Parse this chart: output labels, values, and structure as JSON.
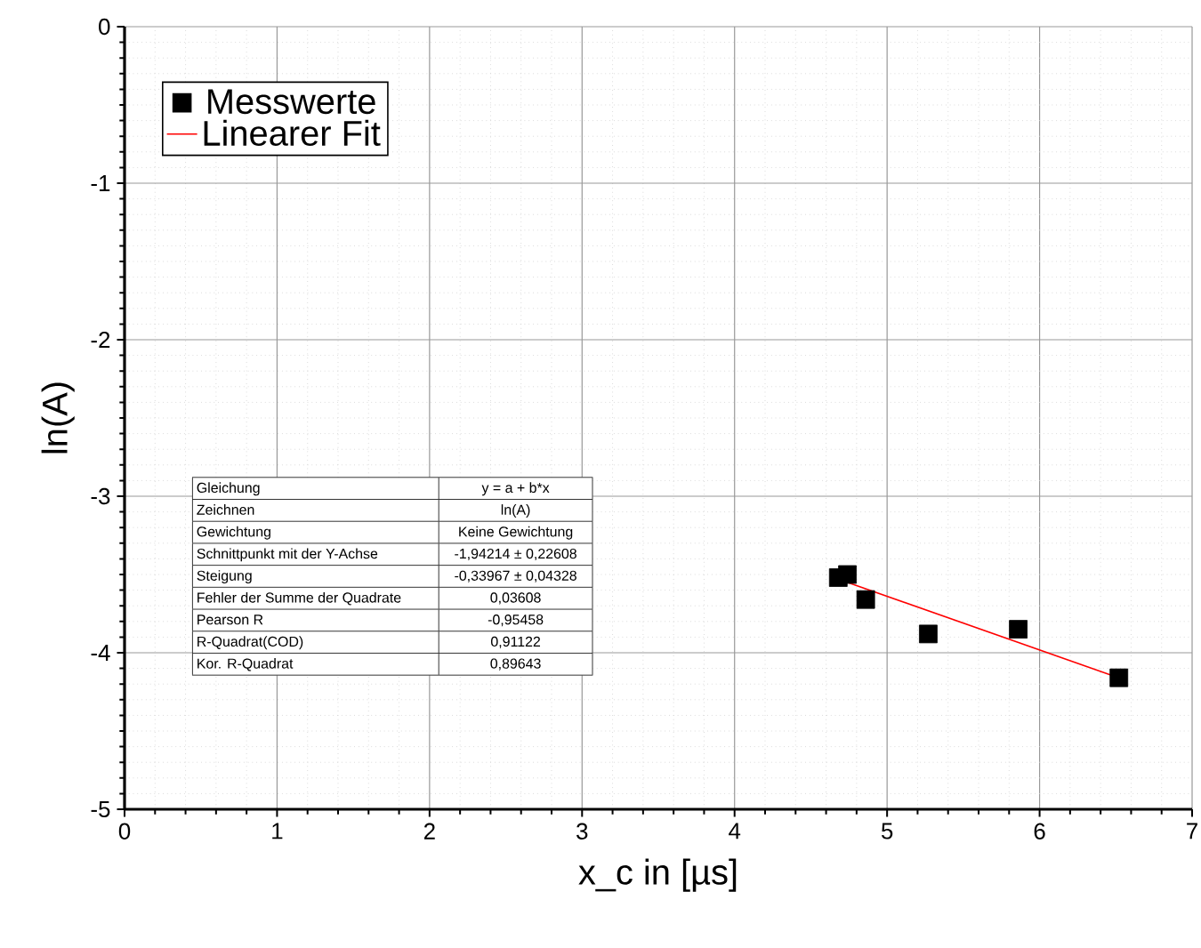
{
  "chart_data": {
    "type": "scatter",
    "xlabel": "x_c in [µs]",
    "ylabel": "ln(A)",
    "xlim": [
      0,
      7
    ],
    "ylim": [
      -5,
      0
    ],
    "xticks": [
      0,
      1,
      2,
      3,
      4,
      5,
      6,
      7
    ],
    "yticks": [
      -5,
      -4,
      -3,
      -2,
      -1,
      0
    ],
    "grid": true,
    "legend": "top left",
    "series": [
      {
        "name": "Messwerte",
        "marker": "square",
        "color": "#000000",
        "x": [
          4.68,
          4.74,
          4.86,
          5.27,
          5.86,
          6.52
        ],
        "values": [
          -3.52,
          -3.5,
          -3.66,
          -3.88,
          -3.85,
          -4.16
        ]
      },
      {
        "name": "Linearer Fit",
        "type": "line",
        "color": "#ff0000",
        "x": [
          4.68,
          6.52
        ],
        "values": [
          -3.53,
          -4.16
        ]
      }
    ],
    "annotations": [
      "Gleichung",
      "y = a + b*x",
      "Zeichnen",
      "ln(A)",
      "Gewichtung",
      "Keine Gewichtung",
      "Schnittpunkt mit der Y-Achse",
      "-1,94214 ± 0,22608",
      "Steigung",
      "-0,33967 ± 0,04328",
      "Fehler der Summe der Quadrate",
      "0,03608",
      "Pearson R",
      "-0,95458",
      "R-Quadrat(COD)",
      "0,91122",
      "Kor. R-Quadrat",
      "0,89643"
    ]
  }
}
